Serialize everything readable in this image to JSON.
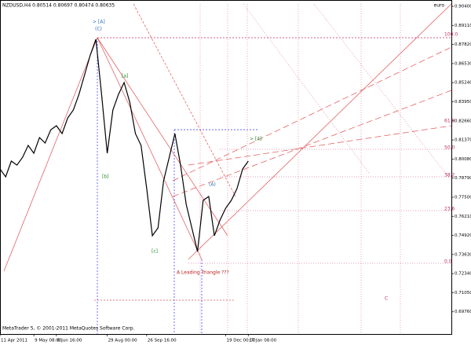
{
  "chart_data": {
    "type": "line",
    "title": "NZDUSD,H4  0.80514 0.80697 0.80474 0.80635",
    "corner_label": "euro",
    "footer": "MetaTrader 5, © 2001-2011 MetaQuotes Software Corp.",
    "color": "#000000",
    "categories": [
      "11 Apr 2011",
      null,
      null,
      null,
      null,
      null,
      "9 May 08:00",
      null,
      null,
      null,
      "6 Jun 16:00",
      null,
      null,
      null,
      null,
      null,
      null,
      null,
      null,
      "29 Aug 00:00",
      null,
      null,
      null,
      null,
      null,
      null,
      "26 Sep 16:00",
      null,
      null,
      null,
      null,
      null,
      null,
      null,
      null,
      null,
      null,
      null,
      null,
      null,
      "19 Dec 00:00",
      null,
      null,
      null,
      "17 Jan 08:00",
      null,
      null,
      null,
      null,
      null,
      null,
      null,
      null,
      null,
      null,
      null,
      null,
      null,
      null,
      null,
      null,
      null,
      null,
      null,
      null,
      null,
      null,
      null,
      null,
      null,
      null,
      null,
      null,
      null,
      null,
      null,
      null,
      null,
      null,
      null
    ],
    "values": [
      0.7941,
      0.7888,
      0.7994,
      0.7967,
      0.802,
      0.81,
      0.8047,
      0.8153,
      0.8116,
      0.8206,
      0.8233,
      0.818,
      0.8286,
      0.8339,
      0.8445,
      0.8578,
      0.8711,
      0.8817,
      0.8445,
      0.8047,
      0.8339,
      0.8445,
      0.8525,
      0.8392,
      0.818,
      0.81,
      0.7808,
      0.749,
      0.7543,
      0.7861,
      0.802,
      0.818,
      0.7967,
      0.7702,
      0.7543,
      0.7383,
      0.7729,
      0.7755,
      0.749,
      0.7596,
      0.7676,
      0.7729,
      0.7808,
      0.7941,
      0.7994,
      null,
      null,
      null,
      null,
      null,
      null,
      null,
      null,
      null,
      null,
      null,
      null,
      null,
      null,
      null,
      null,
      null,
      null,
      null,
      null,
      null,
      null,
      null,
      null,
      null,
      null,
      null,
      null,
      null,
      null,
      null,
      null,
      null,
      null,
      null
    ],
    "ylim": [
      0.6826,
      0.904
    ],
    "yticks": [
      {
        "value": 0.904,
        "label": "0.90400"
      },
      {
        "value": 0.8911,
        "label": "0.89110"
      },
      {
        "value": 0.8782,
        "label": "0.87820"
      },
      {
        "value": 0.8653,
        "label": "0.86530"
      },
      {
        "value": 0.8524,
        "label": "0.85240"
      },
      {
        "value": 0.8395,
        "label": "0.83950"
      },
      {
        "value": 0.8266,
        "label": "0.82660"
      },
      {
        "value": 0.8137,
        "label": "0.81370"
      },
      {
        "value": 0.8008,
        "label": "0.80080"
      },
      {
        "value": 0.7879,
        "label": "0.78790"
      },
      {
        "value": 0.775,
        "label": "0.77500"
      },
      {
        "value": 0.7621,
        "label": "0.76210"
      },
      {
        "value": 0.7492,
        "label": "0.74920"
      },
      {
        "value": 0.7363,
        "label": "0.73630"
      },
      {
        "value": 0.7234,
        "label": "0.72340"
      },
      {
        "value": 0.7105,
        "label": "0.71050"
      },
      {
        "value": 0.6976,
        "label": "0.69760"
      }
    ],
    "annotations": [
      "> [A]",
      "(C)",
      "[a]",
      "[b]",
      "[c]",
      "(A)",
      "A Leading Triangle ???",
      "> [4]",
      "100.0",
      "61.8",
      "50.0",
      "38.2",
      "23.6",
      "0.0",
      "C"
    ]
  }
}
